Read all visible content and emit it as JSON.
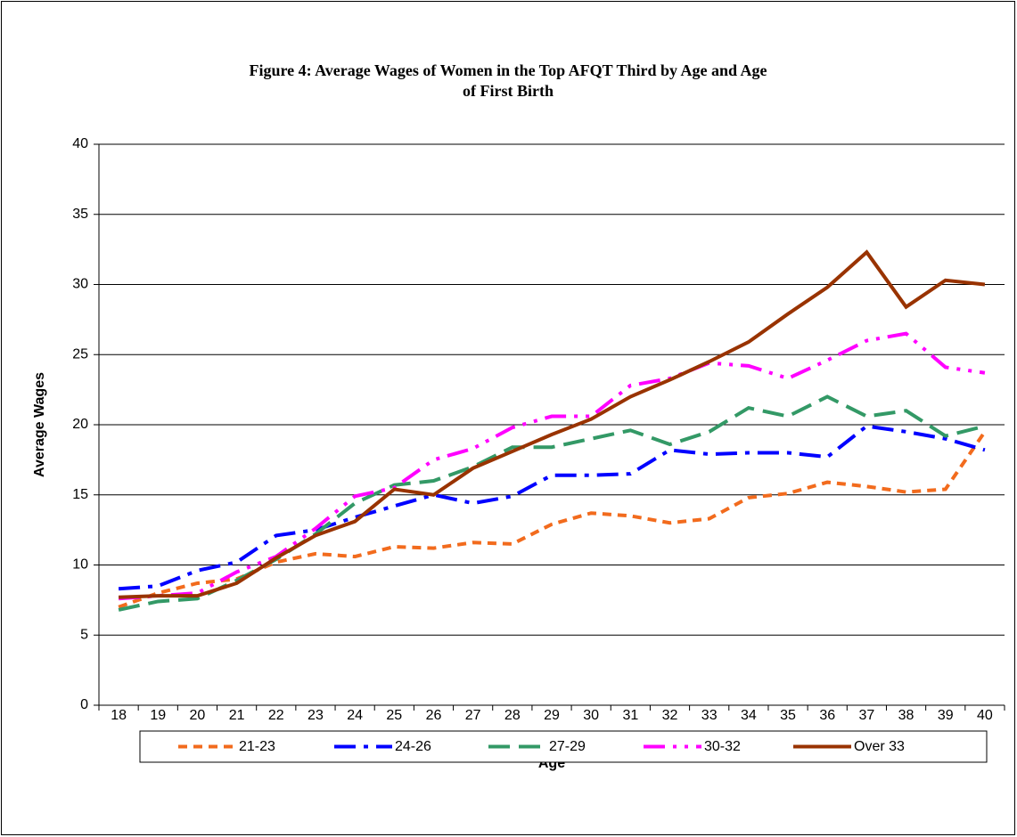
{
  "chart_data": {
    "type": "line",
    "title": "Figure 4: Average Wages of Women in the Top AFQT Third by Age and Age of First Birth",
    "x_label": "Age",
    "y_label": "Average Wages",
    "categories": [
      18,
      19,
      20,
      21,
      22,
      23,
      24,
      25,
      26,
      27,
      28,
      29,
      30,
      31,
      32,
      33,
      34,
      35,
      36,
      37,
      38,
      39,
      40
    ],
    "ylim": [
      0,
      40
    ],
    "yticks": [
      0,
      5,
      10,
      15,
      20,
      25,
      30,
      35,
      40
    ],
    "grid": true,
    "legend": "bottom",
    "series": [
      {
        "name": "21-23",
        "color": "#f26b1d",
        "style": "dashed",
        "values": [
          7.0,
          8.0,
          8.7,
          9.0,
          10.2,
          10.8,
          10.6,
          11.3,
          11.2,
          11.6,
          11.5,
          12.9,
          13.7,
          13.5,
          13.0,
          13.3,
          14.8,
          15.1,
          15.9,
          15.6,
          15.2,
          15.4,
          19.5
        ]
      },
      {
        "name": "24-26",
        "color": "#0000ff",
        "style": "dash-dot",
        "values": [
          8.3,
          8.5,
          9.6,
          10.2,
          12.1,
          12.5,
          13.4,
          14.2,
          15.0,
          14.4,
          14.9,
          16.4,
          16.4,
          16.5,
          18.2,
          17.9,
          18.0,
          18.0,
          17.7,
          19.9,
          19.5,
          19.0,
          18.2
        ]
      },
      {
        "name": "27-29",
        "color": "#339966",
        "style": "long-dash",
        "values": [
          6.8,
          7.4,
          7.6,
          8.9,
          10.4,
          12.2,
          14.4,
          15.7,
          16.0,
          17.0,
          18.4,
          18.4,
          19.0,
          19.6,
          18.6,
          19.5,
          21.2,
          20.6,
          22.0,
          20.6,
          21.0,
          19.2,
          19.9
        ]
      },
      {
        "name": "30-32",
        "color": "#ff00ff",
        "style": "dash-dot-dot",
        "values": [
          7.6,
          7.8,
          8.0,
          9.5,
          10.6,
          12.6,
          14.9,
          15.5,
          17.5,
          18.3,
          19.8,
          20.6,
          20.6,
          22.8,
          23.3,
          24.4,
          24.2,
          23.3,
          24.6,
          26.0,
          26.5,
          24.1,
          23.7
        ]
      },
      {
        "name": "Over 33",
        "color": "#993300",
        "style": "solid",
        "values": [
          7.7,
          7.8,
          7.8,
          8.7,
          10.5,
          12.1,
          13.1,
          15.4,
          15.0,
          16.9,
          18.1,
          19.3,
          20.4,
          22.0,
          23.2,
          24.5,
          25.9,
          27.9,
          29.8,
          32.3,
          28.4,
          30.3,
          30.0
        ]
      }
    ]
  }
}
